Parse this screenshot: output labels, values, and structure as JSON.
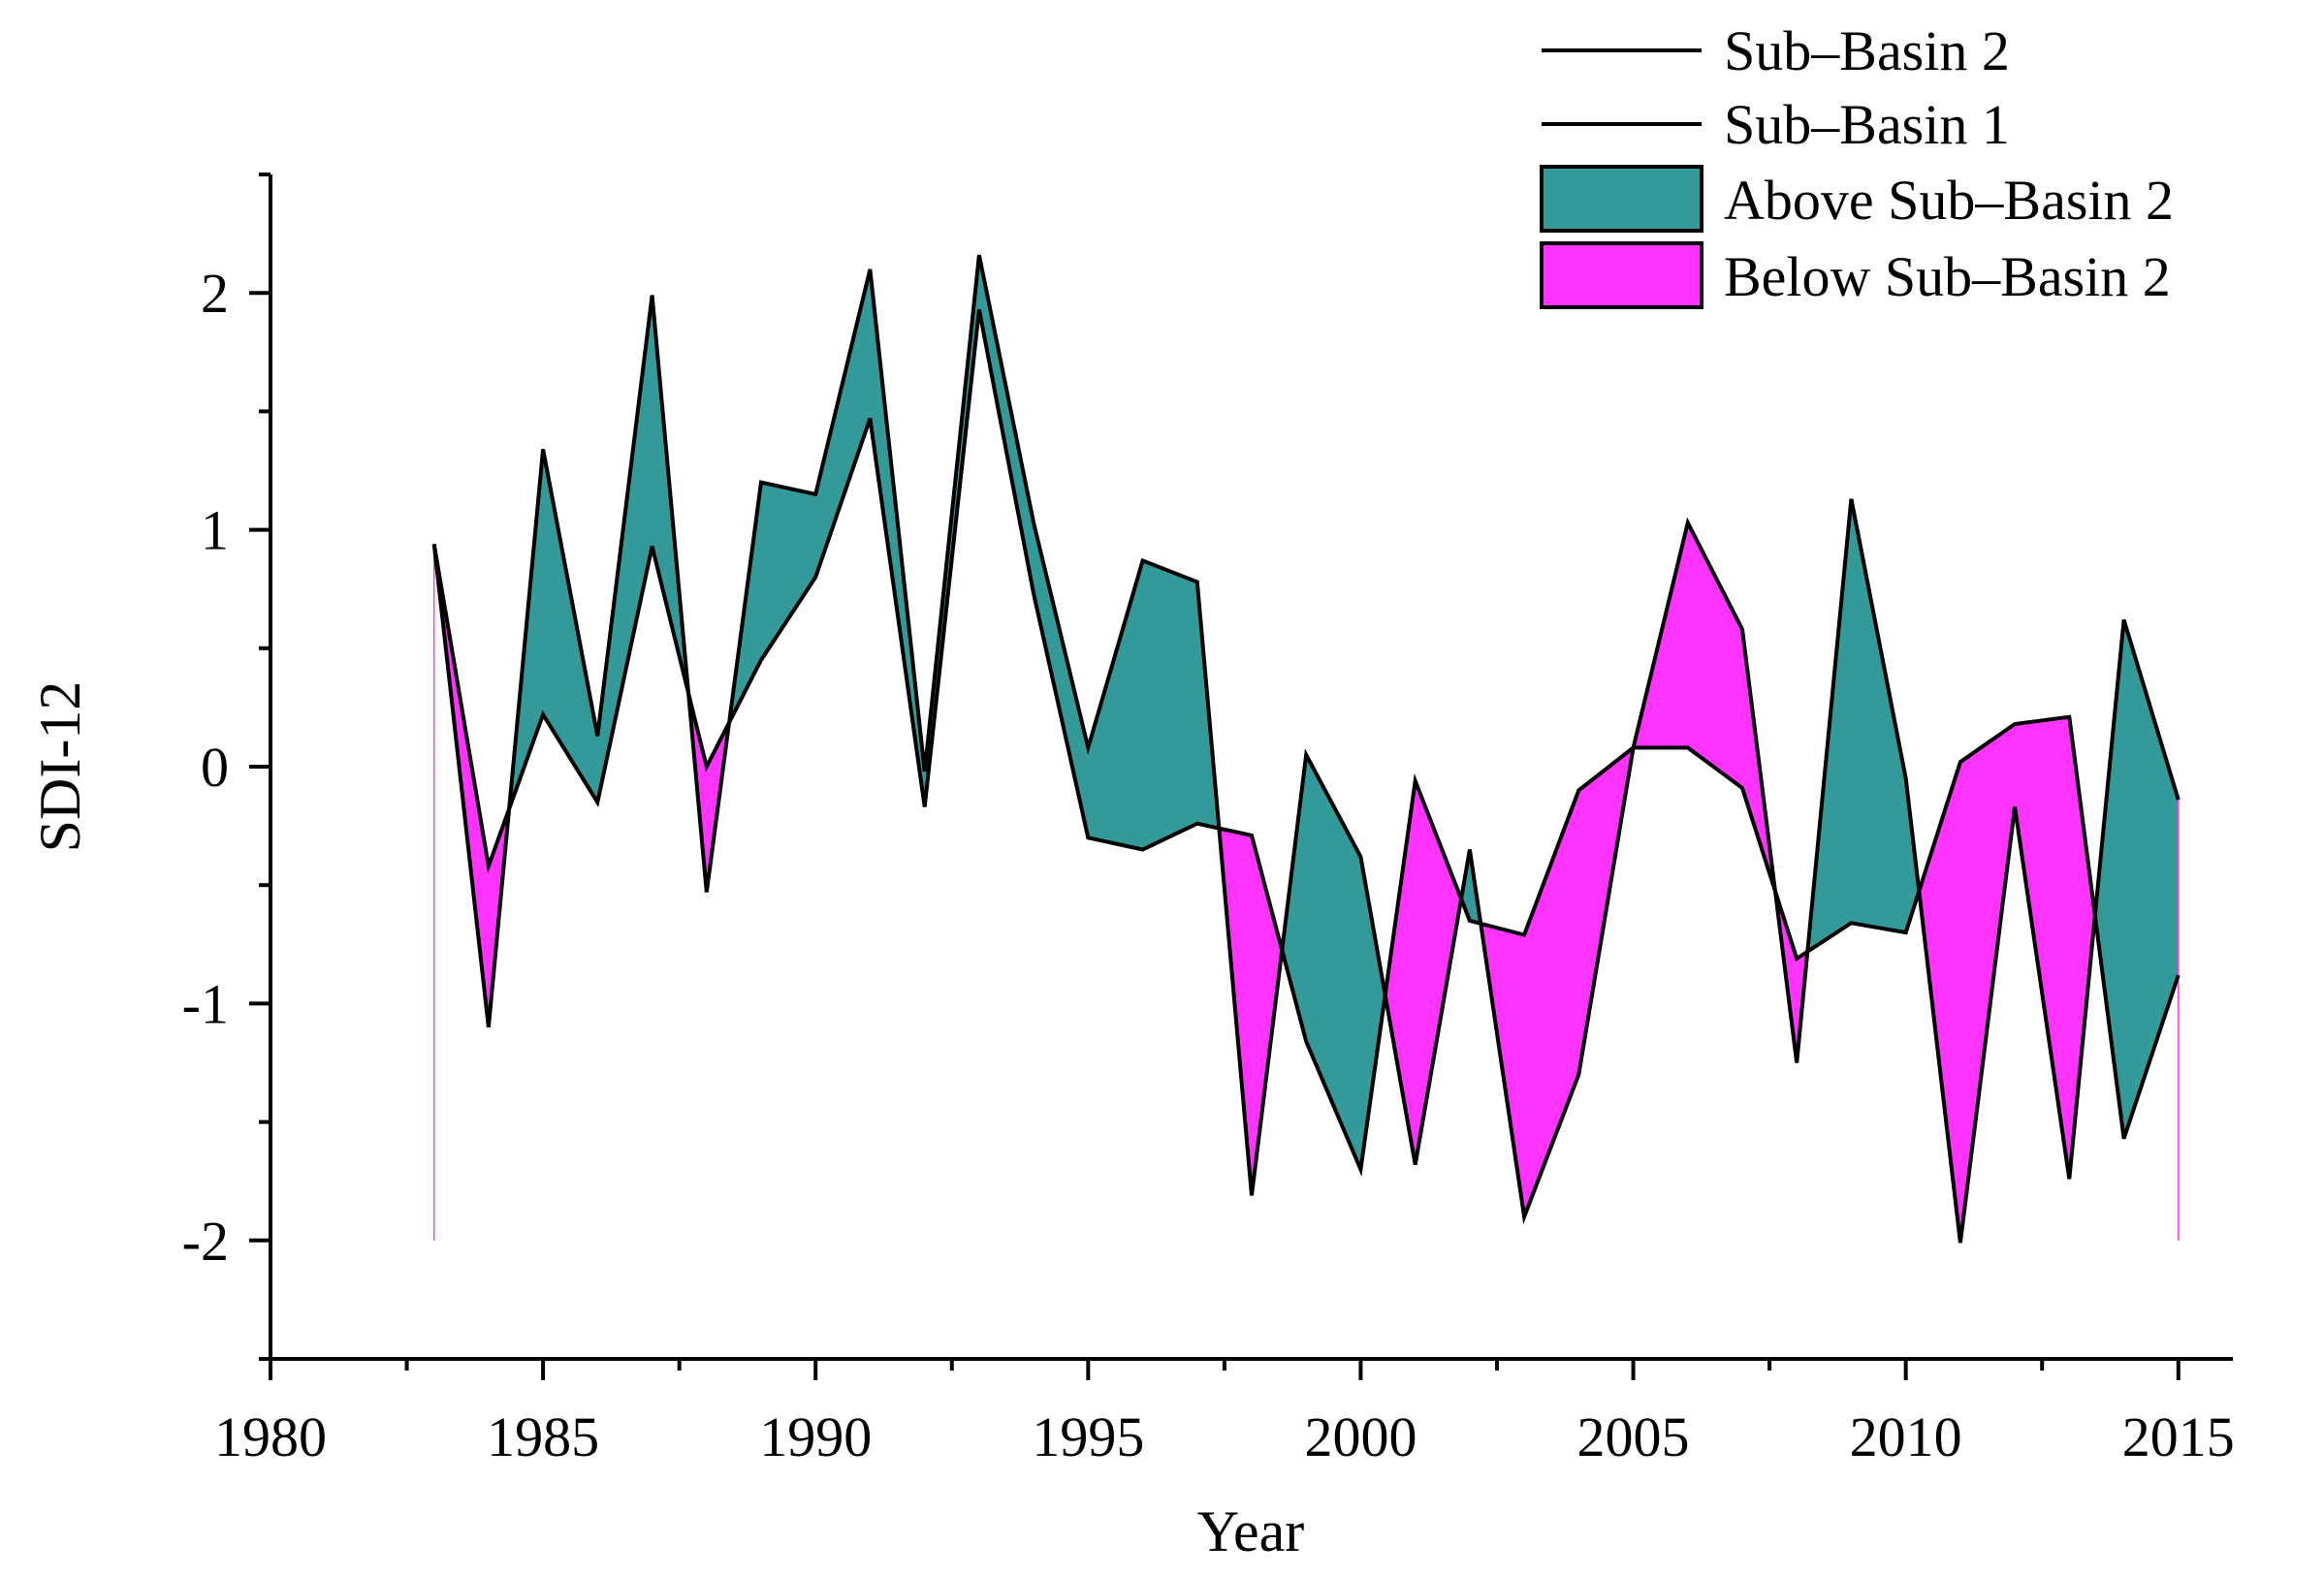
{
  "chart_data": {
    "type": "area",
    "title": "",
    "xlabel": "Year",
    "ylabel": "SDI-12",
    "xlim": [
      1980,
      2016
    ],
    "ylim": [
      -2.5,
      2.5
    ],
    "x_ticks": [
      1980,
      1985,
      1990,
      1995,
      2000,
      2005,
      2010,
      2015
    ],
    "x_tick_labels": [
      "1980",
      "1985",
      "1990",
      "1995",
      "2000",
      "2005",
      "2010",
      "2015"
    ],
    "y_ticks": [
      2,
      1,
      0,
      -1,
      -2
    ],
    "y_tick_labels": [
      "2",
      "1",
      "0",
      "-1",
      "-2"
    ],
    "x": [
      1983,
      1984,
      1985,
      1986,
      1987,
      1988,
      1989,
      1990,
      1991,
      1992,
      1993,
      1994,
      1995,
      1996,
      1997,
      1998,
      1999,
      2000,
      2001,
      2002,
      2003,
      2004,
      2005,
      2006,
      2007,
      2008,
      2009,
      2010,
      2011,
      2012,
      2013,
      2014,
      2015
    ],
    "series": [
      {
        "name": "Sub–Basin 2",
        "values": [
          0.94,
          -0.42,
          0.22,
          -0.15,
          0.93,
          0.0,
          0.45,
          0.8,
          1.47,
          -0.17,
          1.93,
          0.73,
          -0.3,
          -0.35,
          -0.24,
          -0.29,
          -1.16,
          -1.7,
          -0.06,
          -0.65,
          -0.71,
          -0.1,
          0.08,
          0.08,
          -0.09,
          -0.81,
          -0.66,
          -0.7,
          0.02,
          0.18,
          0.21,
          -1.57,
          -0.88
        ],
        "color": "#000000"
      },
      {
        "name": "Sub–Basin 1",
        "values": [
          0.94,
          -1.1,
          1.34,
          0.13,
          1.99,
          -0.53,
          1.2,
          1.15,
          2.1,
          -0.02,
          2.16,
          1.03,
          0.08,
          0.87,
          0.78,
          -1.81,
          0.05,
          -0.38,
          -1.68,
          -0.35,
          -1.9,
          -1.3,
          0.08,
          1.03,
          0.58,
          -1.25,
          1.13,
          -0.05,
          -2.01,
          -0.17,
          -1.74,
          0.62,
          -0.14
        ],
        "color": "#000000"
      }
    ],
    "fills": [
      {
        "name": "Above Sub–Basin 2",
        "color": "#339999"
      },
      {
        "name": "Below Sub–Basin 2",
        "color": "#ff33ff"
      }
    ],
    "legend": {
      "position": "top-right",
      "entries": [
        {
          "label": "Sub–Basin 2",
          "kind": "line",
          "color": "#000000"
        },
        {
          "label": "Sub–Basin 1",
          "kind": "line",
          "color": "#000000"
        },
        {
          "label": "Above Sub–Basin 2",
          "kind": "patch",
          "color": "#339999"
        },
        {
          "label": "Below Sub–Basin 2",
          "kind": "patch",
          "color": "#ff33ff"
        }
      ]
    }
  }
}
